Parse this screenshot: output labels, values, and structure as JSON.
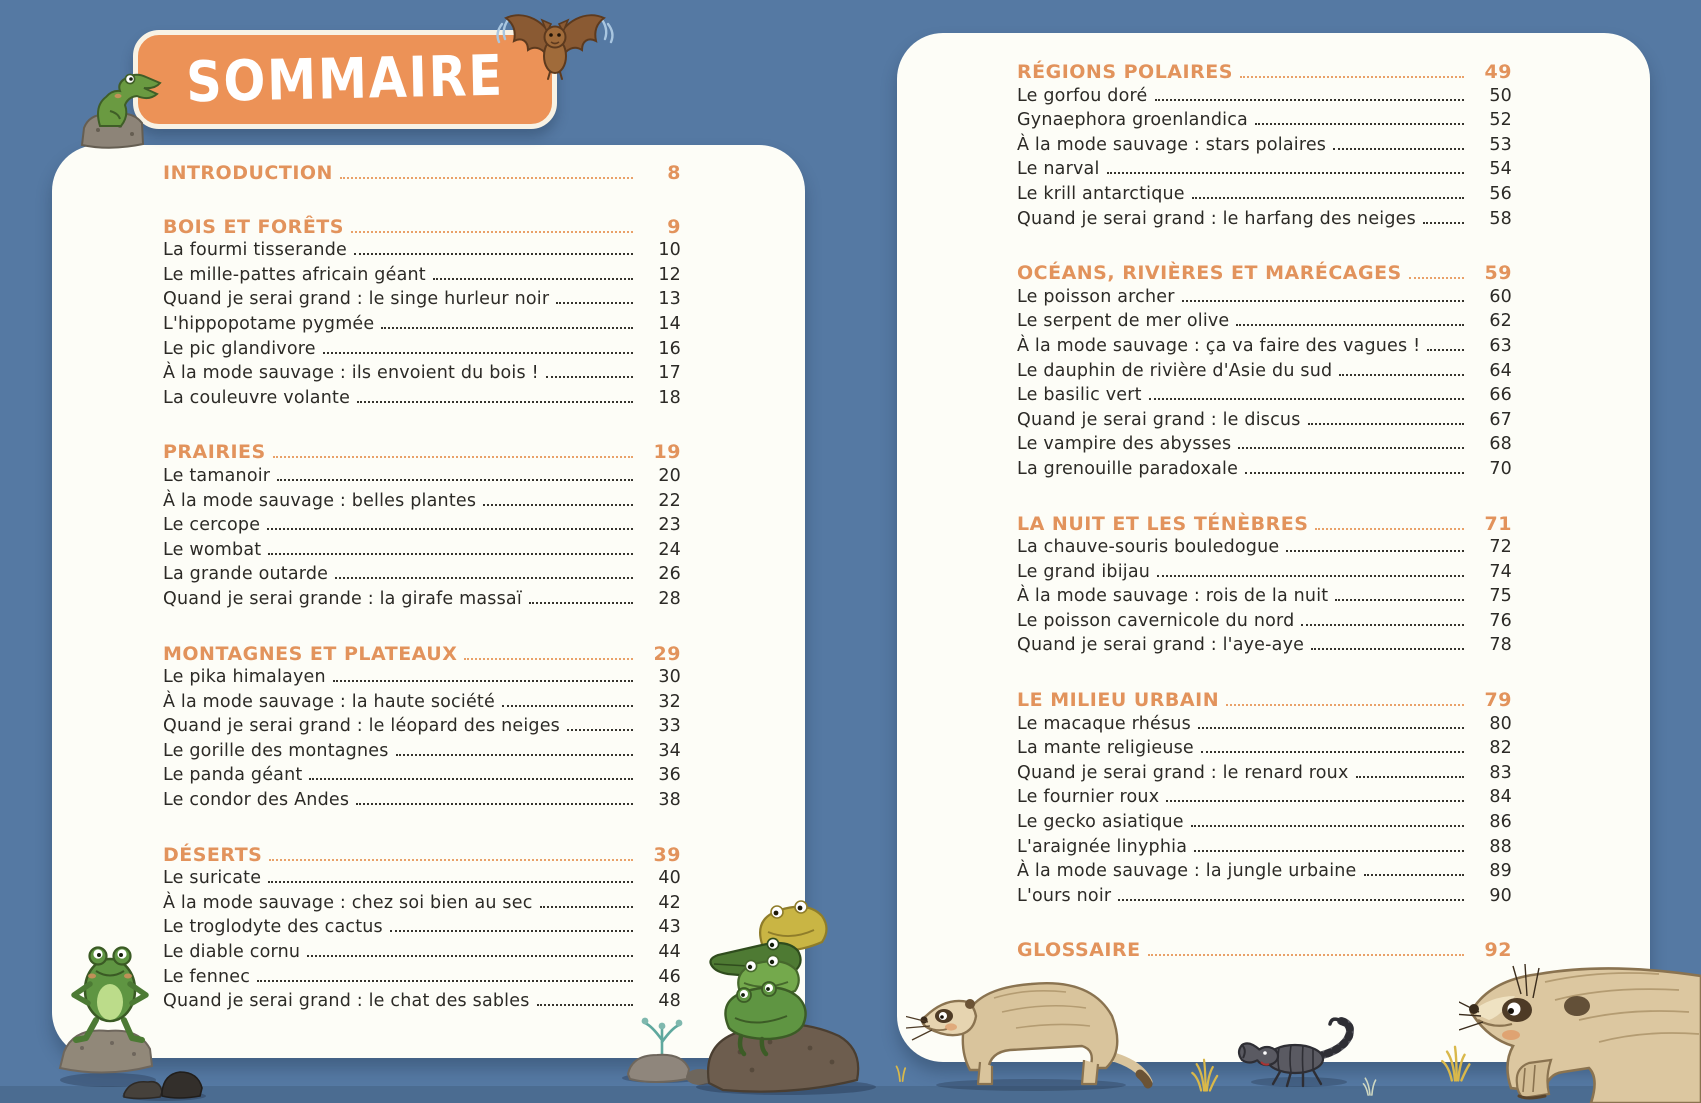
{
  "page": {
    "title": "SOMMAIRE"
  },
  "colors": {
    "background": "#5579a3",
    "panel": "#fdfdf7",
    "banner_fill": "#ec9257",
    "banner_border": "#f8f2e4",
    "heading_text": "#e2935c",
    "entry_text": "#2c2a26",
    "title_text": "#ffffff"
  },
  "left_panel": {
    "sections": [
      {
        "title": "INTRODUCTION",
        "page": "8",
        "entries": []
      },
      {
        "title": "BOIS ET FORÊTS",
        "page": "9",
        "entries": [
          {
            "label": "La fourmi tisserande",
            "page": "10"
          },
          {
            "label": "Le mille-pattes africain géant",
            "page": "12"
          },
          {
            "label": "Quand je serai grand : le singe hurleur noir",
            "page": "13"
          },
          {
            "label": "L'hippopotame pygmée",
            "page": "14"
          },
          {
            "label": "Le pic glandivore",
            "page": "16"
          },
          {
            "label": "À la mode sauvage : ils envoient du bois !",
            "page": "17"
          },
          {
            "label": "La couleuvre volante",
            "page": "18"
          }
        ]
      },
      {
        "title": "PRAIRIES",
        "page": "19",
        "entries": [
          {
            "label": "Le tamanoir",
            "page": "20"
          },
          {
            "label": "À la mode sauvage : belles plantes",
            "page": "22"
          },
          {
            "label": "Le cercope",
            "page": "23"
          },
          {
            "label": "Le wombat",
            "page": "24"
          },
          {
            "label": "La grande outarde",
            "page": "26"
          },
          {
            "label": "Quand je serai grande : la girafe massaï",
            "page": "28"
          }
        ]
      },
      {
        "title": "MONTAGNES ET PLATEAUX",
        "page": "29",
        "entries": [
          {
            "label": "Le pika himalayen",
            "page": "30"
          },
          {
            "label": "À la mode sauvage : la haute société",
            "page": "32"
          },
          {
            "label": "Quand je serai grand : le léopard des neiges",
            "page": "33"
          },
          {
            "label": "Le gorille des montagnes",
            "page": "34"
          },
          {
            "label": "Le panda géant",
            "page": "36"
          },
          {
            "label": "Le condor des Andes",
            "page": "38"
          }
        ]
      },
      {
        "title": "DÉSERTS",
        "page": "39",
        "entries": [
          {
            "label": "Le suricate",
            "page": "40"
          },
          {
            "label": "À la mode sauvage : chez soi bien au sec",
            "page": "42"
          },
          {
            "label": "Le troglodyte des cactus",
            "page": "43"
          },
          {
            "label": "Le diable cornu",
            "page": "44"
          },
          {
            "label": "Le fennec",
            "page": "46"
          },
          {
            "label": "Quand je serai grand : le chat des sables",
            "page": "48"
          }
        ]
      }
    ]
  },
  "right_panel": {
    "sections": [
      {
        "title": "RÉGIONS POLAIRES",
        "page": "49",
        "entries": [
          {
            "label": "Le gorfou doré",
            "page": "50"
          },
          {
            "label": "Gynaephora groenlandica",
            "page": "52"
          },
          {
            "label": "À la mode sauvage : stars polaires",
            "page": "53"
          },
          {
            "label": "Le narval",
            "page": "54"
          },
          {
            "label": "Le krill antarctique",
            "page": "56"
          },
          {
            "label": "Quand je serai grand : le harfang des neiges",
            "page": "58"
          }
        ]
      },
      {
        "title": "OCÉANS, RIVIÈRES ET MARÉCAGES",
        "page": "59",
        "entries": [
          {
            "label": "Le poisson archer",
            "page": "60"
          },
          {
            "label": "Le serpent de mer olive",
            "page": "62"
          },
          {
            "label": "À la mode sauvage : ça va faire des vagues !",
            "page": "63"
          },
          {
            "label": "Le dauphin de rivière d'Asie du sud",
            "page": "64"
          },
          {
            "label": "Le basilic vert",
            "page": "66"
          },
          {
            "label": "Quand je serai grand : le discus",
            "page": "67"
          },
          {
            "label": "Le vampire des abysses",
            "page": "68"
          },
          {
            "label": "La grenouille paradoxale",
            "page": "70"
          }
        ]
      },
      {
        "title": "LA NUIT ET LES TÉNÈBRES",
        "page": "71",
        "entries": [
          {
            "label": "La chauve-souris bouledogue",
            "page": "72"
          },
          {
            "label": "Le grand ibijau",
            "page": "74"
          },
          {
            "label": "À la mode sauvage : rois de la nuit",
            "page": "75"
          },
          {
            "label": "Le poisson cavernicole du nord",
            "page": "76"
          },
          {
            "label": "Quand je serai grand : l'aye-aye",
            "page": "78"
          }
        ]
      },
      {
        "title": "LE MILIEU URBAIN",
        "page": "79",
        "entries": [
          {
            "label": "Le macaque rhésus",
            "page": "80"
          },
          {
            "label": "La mante religieuse",
            "page": "82"
          },
          {
            "label": "Quand je serai grand : le renard roux",
            "page": "83"
          },
          {
            "label": "Le fournier roux",
            "page": "84"
          },
          {
            "label": "Le gecko asiatique",
            "page": "86"
          },
          {
            "label": "L'araignée linyphia",
            "page": "88"
          },
          {
            "label": "À la mode sauvage : la jungle urbaine",
            "page": "89"
          },
          {
            "label": "L'ours noir",
            "page": "90"
          }
        ]
      },
      {
        "title": "GLOSSAIRE",
        "page": "92",
        "entries": []
      }
    ]
  },
  "illustrations": [
    "crocodile-on-rock",
    "bat",
    "standing-frog",
    "small-dark-rocks",
    "sprout-on-rocks",
    "frog-stack-on-rock",
    "meerkat-left",
    "scorpion",
    "grass-tufts",
    "meerkat-right"
  ]
}
